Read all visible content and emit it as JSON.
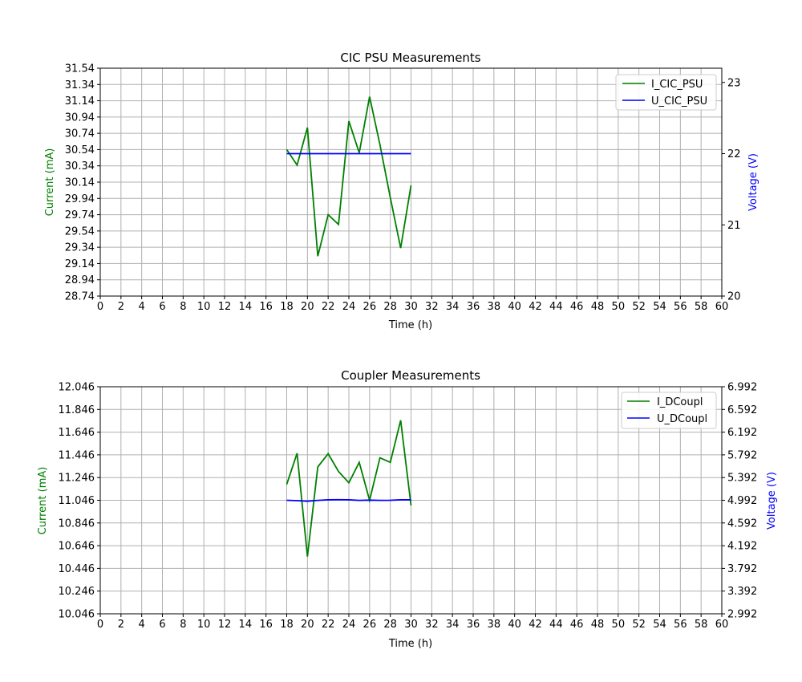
{
  "colors": {
    "current": "#008000",
    "voltage": "#0000ff",
    "grid": "#b0b0b0",
    "axis": "#000000"
  },
  "chart_data": [
    {
      "type": "line",
      "title": "CIC PSU Measurements",
      "xlabel": "Time (h)",
      "ylabel_left": "Current (mA)",
      "ylabel_right": "Voltage (V)",
      "xlim": [
        0,
        60
      ],
      "x_ticks": [
        "0",
        "2",
        "4",
        "6",
        "8",
        "10",
        "12",
        "14",
        "16",
        "18",
        "20",
        "22",
        "24",
        "26",
        "28",
        "30",
        "32",
        "34",
        "36",
        "38",
        "40",
        "42",
        "44",
        "46",
        "48",
        "50",
        "52",
        "54",
        "56",
        "58",
        "60"
      ],
      "ylim_left": [
        28.74,
        31.54
      ],
      "y_ticks_left": [
        "28.74",
        "28.94",
        "29.14",
        "29.34",
        "29.54",
        "29.74",
        "29.94",
        "30.14",
        "30.34",
        "30.54",
        "30.74",
        "30.94",
        "31.14",
        "31.34",
        "31.54"
      ],
      "ylim_right": [
        20,
        23.2
      ],
      "y_ticks_right": [
        "20",
        "21",
        "22",
        "23"
      ],
      "grid": true,
      "legend_position": "top-right",
      "series": [
        {
          "name": "I_CIC_PSU",
          "axis": "left",
          "color_key": "current",
          "x": [
            18,
            19,
            20,
            21,
            22,
            23,
            24,
            25,
            26,
            27,
            28,
            29,
            30
          ],
          "y": [
            30.54,
            30.35,
            30.81,
            29.23,
            29.74,
            29.62,
            30.89,
            30.5,
            31.19,
            30.6,
            29.95,
            29.33,
            30.1
          ]
        },
        {
          "name": "U_CIC_PSU",
          "axis": "right",
          "color_key": "voltage",
          "x": [
            18,
            19,
            20,
            21,
            22,
            23,
            24,
            25,
            26,
            27,
            28,
            29,
            30
          ],
          "y": [
            22.0,
            22.0,
            22.0,
            22.0,
            22.0,
            22.0,
            22.0,
            22.0,
            22.0,
            22.0,
            22.0,
            22.0,
            22.0
          ]
        }
      ]
    },
    {
      "type": "line",
      "title": "Coupler Measurements",
      "xlabel": "Time (h)",
      "ylabel_left": "Current (mA)",
      "ylabel_right": "Voltage (V)",
      "xlim": [
        0,
        60
      ],
      "x_ticks": [
        "0",
        "2",
        "4",
        "6",
        "8",
        "10",
        "12",
        "14",
        "16",
        "18",
        "20",
        "22",
        "24",
        "26",
        "28",
        "30",
        "32",
        "34",
        "36",
        "38",
        "40",
        "42",
        "44",
        "46",
        "48",
        "50",
        "52",
        "54",
        "56",
        "58",
        "60"
      ],
      "ylim_left": [
        10.046,
        12.046
      ],
      "y_ticks_left": [
        "10.046",
        "10.246",
        "10.446",
        "10.646",
        "10.846",
        "11.046",
        "11.246",
        "11.446",
        "11.646",
        "11.846",
        "12.046"
      ],
      "ylim_right": [
        2.992,
        6.992
      ],
      "y_ticks_right": [
        "2.992",
        "3.392",
        "3.792",
        "4.192",
        "4.592",
        "4.992",
        "5.392",
        "5.792",
        "6.192",
        "6.592",
        "6.992"
      ],
      "grid": true,
      "legend_position": "top-right",
      "series": [
        {
          "name": "I_DCoupl",
          "axis": "left",
          "color_key": "current",
          "x": [
            18,
            19,
            20,
            21,
            22,
            23,
            24,
            25,
            26,
            27,
            28,
            29,
            30
          ],
          "y": [
            11.186,
            11.46,
            10.55,
            11.34,
            11.456,
            11.3,
            11.2,
            11.38,
            11.046,
            11.42,
            11.38,
            11.75,
            11.0
          ]
        },
        {
          "name": "U_DCoupl",
          "axis": "right",
          "color_key": "voltage",
          "x": [
            18,
            19,
            20,
            21,
            22,
            23,
            24,
            25,
            26,
            27,
            28,
            29,
            30
          ],
          "y": [
            4.992,
            4.985,
            4.975,
            4.99,
            5.0,
            5.002,
            5.0,
            4.99,
            4.995,
            4.99,
            4.992,
            5.0,
            5.0
          ]
        }
      ]
    }
  ]
}
